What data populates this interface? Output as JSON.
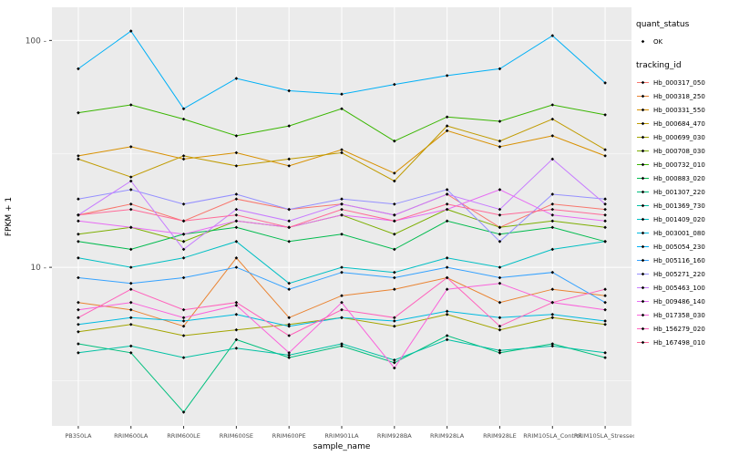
{
  "legend": {
    "quant_status_title": "quant_status",
    "quant_status_items": [
      {
        "label": "OK"
      }
    ],
    "tracking_id_title": "tracking_id"
  },
  "chart_data": {
    "type": "line",
    "title": "",
    "xlabel": "sample_name",
    "ylabel": "FPKM + 1",
    "y_scale": "log10",
    "y_major_ticks": [
      10,
      100
    ],
    "y_minor_ticks": [
      3.16,
      31.6
    ],
    "ylim": [
      2,
      140
    ],
    "panel_background": "#EBEBEB",
    "grid_color": "#FFFFFF",
    "point_color": "#000000",
    "legend_position": "right",
    "quant_status": "OK",
    "categories": [
      "PB350LA",
      "RRIM600LA",
      "RRIM600LE",
      "RRIM600SE",
      "RRIM600PE",
      "RRIM901LA",
      "RRIM928BA",
      "RRIM928LA",
      "RRIM928LE",
      "RRIM105LA_Control",
      "RRIM105LA_Stressed"
    ],
    "series": [
      {
        "name": "Hb_000317_050",
        "color": "#F8766D",
        "values": [
          17,
          19,
          16,
          20,
          18,
          19,
          17,
          21,
          15,
          19,
          18
        ]
      },
      {
        "name": "Hb_000318_250",
        "color": "#EA8331",
        "values": [
          7,
          6.5,
          5.5,
          11,
          6,
          7.5,
          8,
          9,
          7,
          8,
          7.5
        ]
      },
      {
        "name": "Hb_000331_550",
        "color": "#D89000",
        "values": [
          31,
          34,
          30,
          32,
          28,
          33,
          26,
          40,
          34,
          38,
          31
        ]
      },
      {
        "name": "Hb_000684_470",
        "color": "#C09B00",
        "values": [
          30,
          25,
          31,
          28,
          30,
          32,
          24,
          42,
          36,
          45,
          33
        ]
      },
      {
        "name": "Hb_000699_030",
        "color": "#A3A500",
        "values": [
          5.2,
          5.6,
          5,
          5.3,
          5.6,
          6,
          5.5,
          6.2,
          5.3,
          6,
          5.6
        ]
      },
      {
        "name": "Hb_000708_030",
        "color": "#7CAE00",
        "values": [
          14,
          15,
          13,
          16,
          15,
          17,
          14,
          18,
          15,
          16,
          15
        ]
      },
      {
        "name": "Hb_000732_010",
        "color": "#39B600",
        "values": [
          48,
          52,
          45,
          38,
          42,
          50,
          36,
          46,
          44,
          52,
          47
        ]
      },
      {
        "name": "Hb_000883_020",
        "color": "#00BB4E",
        "values": [
          13,
          12,
          14,
          15,
          13,
          14,
          12,
          16,
          14,
          15,
          13
        ]
      },
      {
        "name": "Hb_001307_220",
        "color": "#00BF7D",
        "values": [
          4.6,
          4.2,
          2.3,
          4.8,
          4,
          4.5,
          3.8,
          5,
          4.2,
          4.6,
          4
        ]
      },
      {
        "name": "Hb_001369_730",
        "color": "#00C1A3",
        "values": [
          4.2,
          4.5,
          4,
          4.4,
          4.1,
          4.6,
          3.9,
          4.8,
          4.3,
          4.5,
          4.2
        ]
      },
      {
        "name": "Hb_001409_020",
        "color": "#00BFC4",
        "values": [
          11,
          10,
          11,
          13,
          8.5,
          10,
          9.5,
          11,
          10,
          12,
          13
        ]
      },
      {
        "name": "Hb_003001_080",
        "color": "#00BAE0",
        "values": [
          5.6,
          6,
          5.8,
          6.2,
          5.5,
          6,
          5.8,
          6.4,
          6,
          6.2,
          5.8
        ]
      },
      {
        "name": "Hb_005054_230",
        "color": "#00B0F6",
        "values": [
          75,
          110,
          50,
          68,
          60,
          58,
          64,
          70,
          75,
          105,
          65
        ]
      },
      {
        "name": "Hb_005116_160",
        "color": "#35A2FF",
        "values": [
          9,
          8.5,
          9,
          10,
          8,
          9.5,
          9,
          10,
          9,
          9.5,
          7
        ]
      },
      {
        "name": "Hb_005271_220",
        "color": "#9590FF",
        "values": [
          20,
          22,
          19,
          21,
          18,
          20,
          19,
          22,
          13,
          21,
          20
        ]
      },
      {
        "name": "Hb_005463_100",
        "color": "#C77CFF",
        "values": [
          17,
          24,
          12,
          18,
          16,
          19,
          17,
          21,
          18,
          30,
          19
        ]
      },
      {
        "name": "Hb_009486_140",
        "color": "#E76BF3",
        "values": [
          16,
          15,
          14,
          16,
          15,
          17,
          16,
          18,
          22,
          17,
          16
        ]
      },
      {
        "name": "Hb_017358_030",
        "color": "#FA62DB",
        "values": [
          6.5,
          7,
          6,
          6.8,
          4.2,
          7,
          3.6,
          8,
          8.5,
          7,
          6.5
        ]
      },
      {
        "name": "Hb_156279_020",
        "color": "#FF62BC",
        "values": [
          6,
          8,
          6.5,
          7,
          5,
          6.5,
          6,
          9,
          5.5,
          7,
          8
        ]
      },
      {
        "name": "Hb_167498_010",
        "color": "#FF6A98",
        "values": [
          17,
          18,
          16,
          17,
          15,
          18,
          16,
          19,
          17,
          18,
          17
        ]
      }
    ]
  }
}
